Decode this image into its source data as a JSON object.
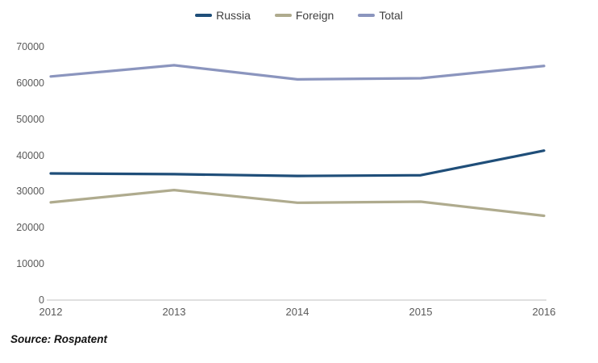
{
  "chart_data": {
    "type": "line",
    "title": "",
    "xlabel": "",
    "ylabel": "",
    "categories": [
      "2012",
      "2013",
      "2014",
      "2015",
      "2016"
    ],
    "series": [
      {
        "name": "Russia",
        "color": "#1F4E79",
        "values": [
          35000,
          34800,
          34300,
          34500,
          41300
        ]
      },
      {
        "name": "Foreign",
        "color": "#AFAB8E",
        "values": [
          27000,
          30400,
          26900,
          27200,
          23300
        ]
      },
      {
        "name": "Total",
        "color": "#8B95BE",
        "values": [
          61800,
          64900,
          61000,
          61300,
          64700
        ]
      }
    ],
    "ylim": [
      0,
      70000
    ],
    "ytick_step": 10000,
    "yticks": [
      "0",
      "10000",
      "20000",
      "30000",
      "40000",
      "50000",
      "60000",
      "70000"
    ],
    "grid": false,
    "legend_position": "top"
  },
  "source": "Source: Rospatent",
  "colors": {
    "axis_line": "#D6D6D6",
    "tick_label": "#595959",
    "legend_label": "#404040",
    "background": "#FFFFFF"
  }
}
